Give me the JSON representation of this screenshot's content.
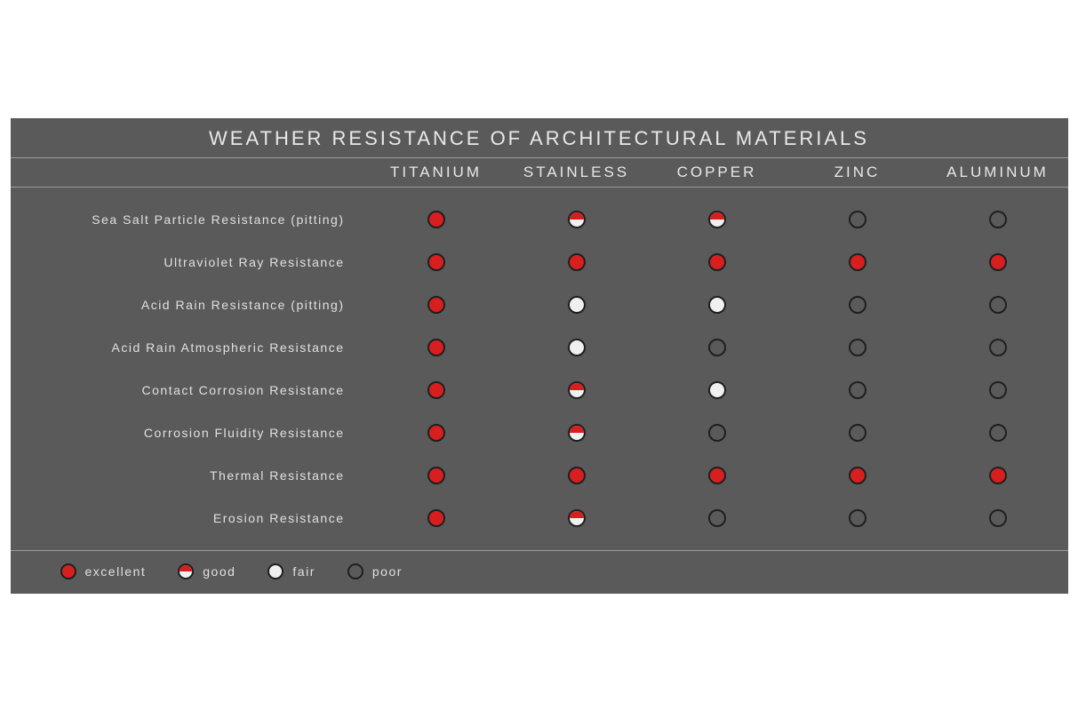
{
  "title": "WEATHER RESISTANCE OF ARCHITECTURAL MATERIALS",
  "colors": {
    "background": "#5a5a5a",
    "divider": "#9a9a9a",
    "text": "#e8e8e8",
    "excellent": "#d81f1f",
    "fair": "#f0f0f0",
    "poor_border": "#1f1f1f"
  },
  "columns": [
    "TITANIUM",
    "STAINLESS",
    "COPPER",
    "ZINC",
    "ALUMINUM"
  ],
  "rows": [
    {
      "label": "Sea Salt Particle Resistance (pitting)",
      "values": [
        "excellent",
        "good",
        "good",
        "poor",
        "poor"
      ]
    },
    {
      "label": "Ultraviolet Ray Resistance",
      "values": [
        "excellent",
        "excellent",
        "excellent",
        "excellent",
        "excellent"
      ]
    },
    {
      "label": "Acid Rain Resistance (pitting)",
      "values": [
        "excellent",
        "fair",
        "fair",
        "poor",
        "poor"
      ]
    },
    {
      "label": "Acid Rain Atmospheric Resistance",
      "values": [
        "excellent",
        "fair",
        "poor",
        "poor",
        "poor"
      ]
    },
    {
      "label": "Contact Corrosion Resistance",
      "values": [
        "excellent",
        "good",
        "fair",
        "poor",
        "poor"
      ]
    },
    {
      "label": "Corrosion Fluidity Resistance",
      "values": [
        "excellent",
        "good",
        "poor",
        "poor",
        "poor"
      ]
    },
    {
      "label": "Thermal Resistance",
      "values": [
        "excellent",
        "excellent",
        "excellent",
        "excellent",
        "excellent"
      ]
    },
    {
      "label": "Erosion Resistance",
      "values": [
        "excellent",
        "good",
        "poor",
        "poor",
        "poor"
      ]
    }
  ],
  "legend": [
    {
      "level": "excellent",
      "label": "excellent"
    },
    {
      "level": "good",
      "label": "good"
    },
    {
      "level": "fair",
      "label": "fair"
    },
    {
      "level": "poor",
      "label": "poor"
    }
  ]
}
